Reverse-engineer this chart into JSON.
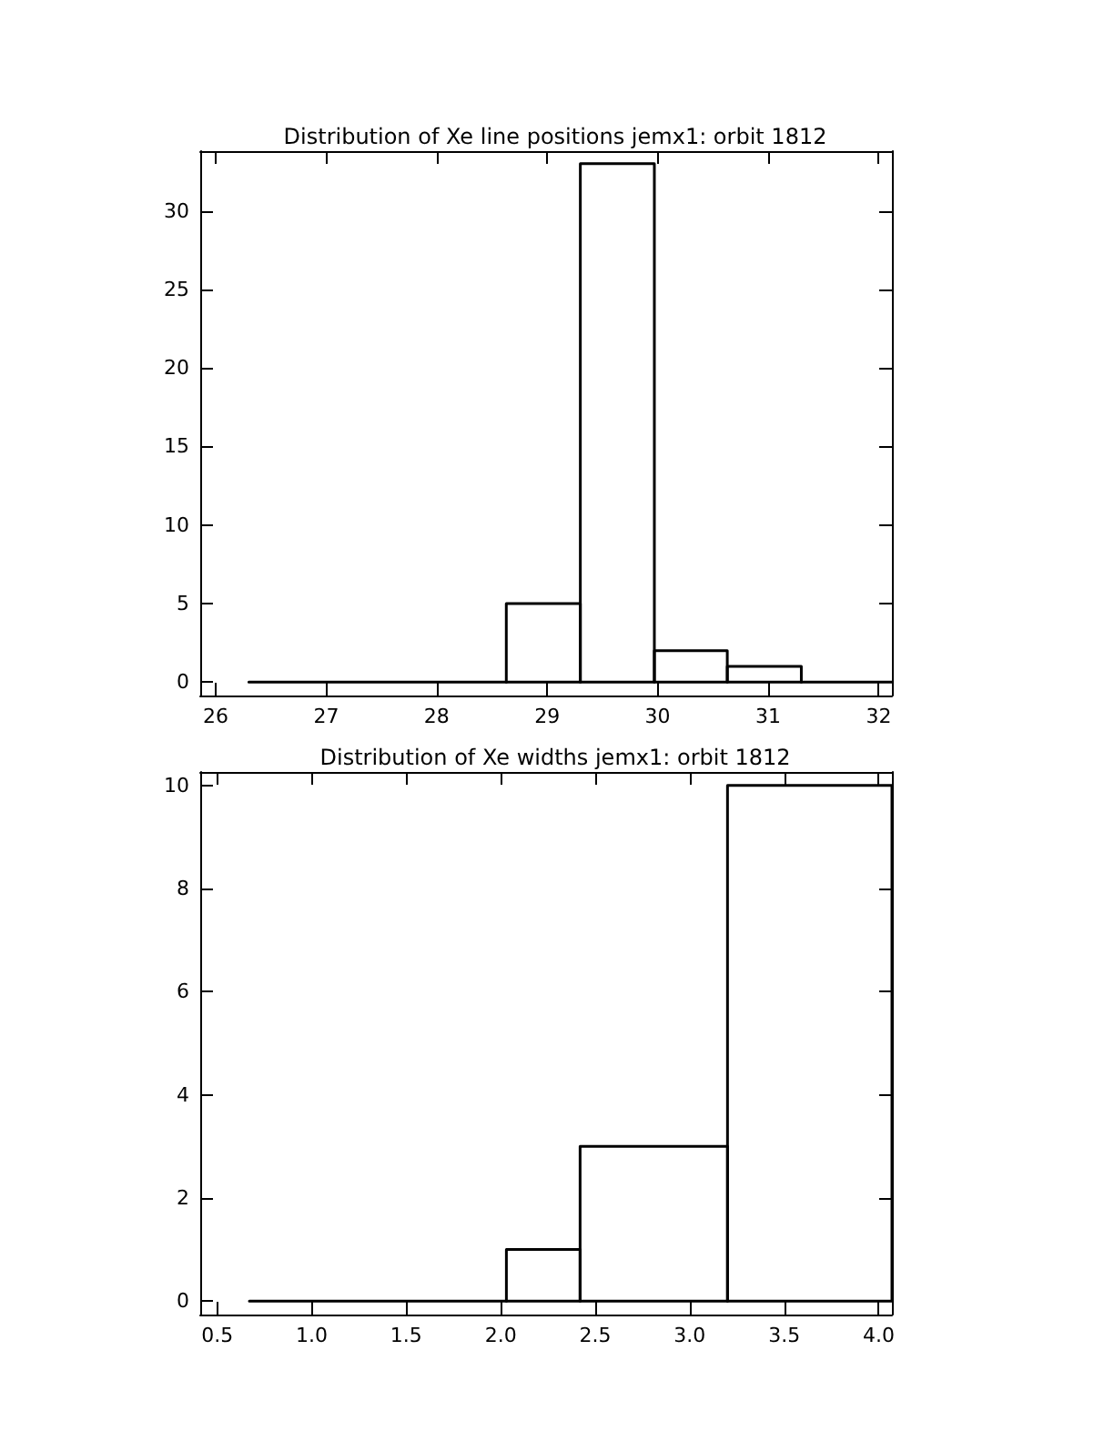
{
  "chart_data": [
    {
      "type": "histogram",
      "title": "Distribution of Xe line positions jemx1: orbit 1812",
      "bins": [
        26.3,
        28.63,
        29.3,
        29.97,
        30.63,
        31.3,
        32.12
      ],
      "values": [
        0,
        5,
        33,
        2,
        1,
        0
      ],
      "color": "#000000",
      "xlim": [
        25.86,
        32.12
      ],
      "ylim": [
        -0.85,
        33.8
      ],
      "xticks": [
        26,
        27,
        28,
        29,
        30,
        31,
        32
      ],
      "yticks": [
        0,
        5,
        10,
        15,
        20,
        25,
        30
      ]
    },
    {
      "type": "histogram",
      "title": "Distribution of Xe widths jemx1: orbit 1812",
      "bins": [
        0.67,
        2.03,
        2.42,
        3.2,
        4.07
      ],
      "values": [
        0,
        1,
        3,
        10
      ],
      "color": "#000000",
      "xlim": [
        0.41,
        4.07
      ],
      "ylim": [
        -0.26,
        10.26
      ],
      "xticks": [
        0.5,
        {
          "value": 1,
          "label": "1.0"
        },
        1.5,
        {
          "value": 2,
          "label": "2.0"
        },
        2.5,
        {
          "value": 3,
          "label": "3.0"
        },
        3.5,
        {
          "value": 4,
          "label": "4.0"
        }
      ],
      "yticks": [
        0,
        2,
        4,
        6,
        8,
        10
      ]
    }
  ]
}
